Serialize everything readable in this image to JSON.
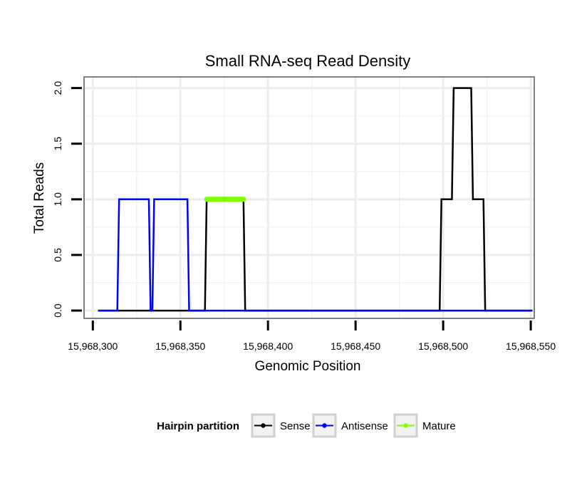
{
  "chart_data": {
    "type": "line",
    "title": "Small RNA-seq Read Density",
    "xlabel": "Genomic Position",
    "ylabel": "Total Reads",
    "xlim": [
      15968295,
      15968552
    ],
    "ylim": [
      -0.07,
      2.1
    ],
    "x_ticks": [
      15968300,
      15968350,
      15968400,
      15968450,
      15968500,
      15968550
    ],
    "x_tick_labels": [
      "15,968,300",
      "15,968,350",
      "15,968,400",
      "15,968,450",
      "15,968,500",
      "15,968,550"
    ],
    "y_ticks": [
      0,
      0.5,
      1,
      1.5,
      2
    ],
    "y_tick_labels": [
      "0.0",
      "0.5",
      "1.0",
      "1.5",
      "2.0"
    ],
    "grid": true,
    "legend": {
      "title": "Hairpin partition",
      "placement": "bottom",
      "entries": [
        "Sense",
        "Antisense",
        "Mature"
      ]
    },
    "series": [
      {
        "name": "Sense",
        "color": "#000000",
        "x": [
          15968303,
          15968364,
          15968365,
          15968386,
          15968387,
          15968498,
          15968499,
          15968505,
          15968506,
          15968516,
          15968517,
          15968523,
          15968524,
          15968551
        ],
        "y": [
          0,
          0,
          1,
          1,
          0,
          0,
          1,
          1,
          2,
          2,
          1,
          1,
          0,
          0
        ]
      },
      {
        "name": "Antisense",
        "color": "#0000ff",
        "x": [
          15968303,
          15968314,
          15968315,
          15968332,
          15968333,
          15968334,
          15968335,
          15968354,
          15968355,
          15968551
        ],
        "y": [
          0,
          0,
          1,
          1,
          0,
          0,
          1,
          1,
          0,
          0
        ]
      },
      {
        "name": "Mature",
        "color": "#7fff00",
        "x": [
          15968365,
          15968386
        ],
        "y": [
          1,
          1
        ]
      }
    ]
  }
}
